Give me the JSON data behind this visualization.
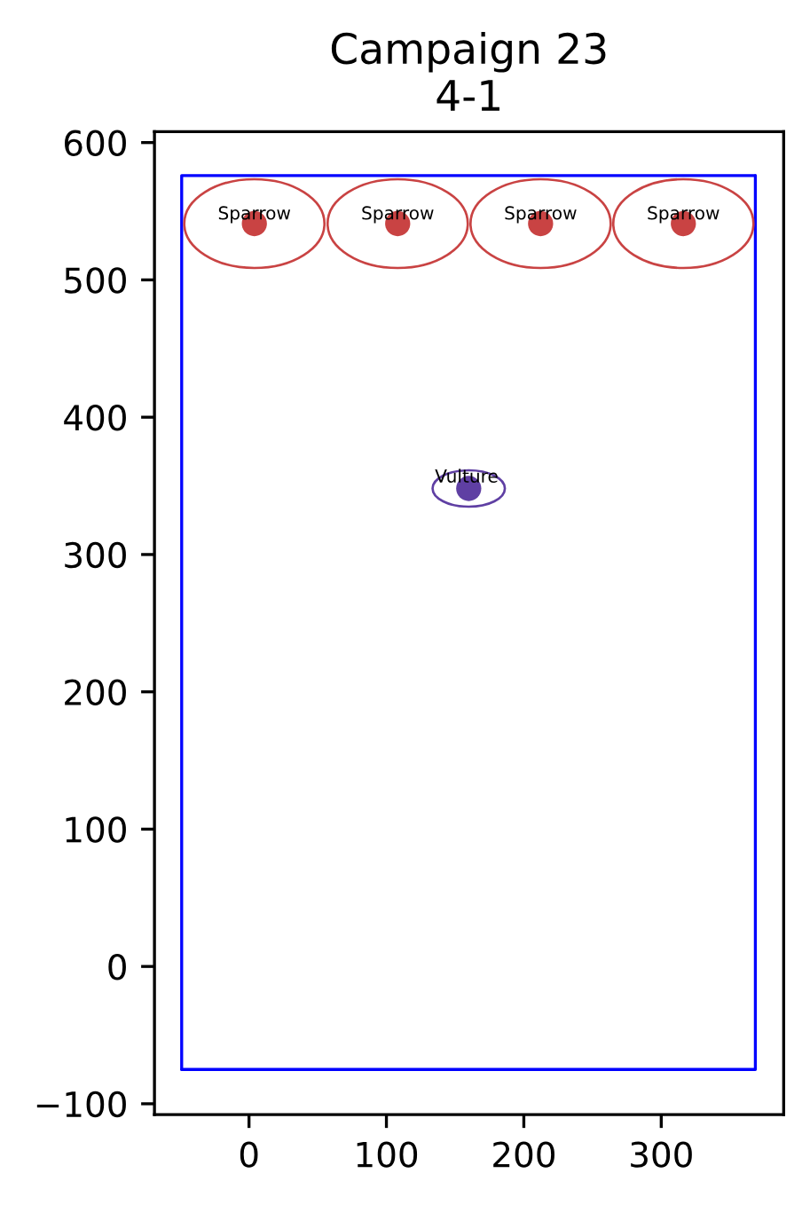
{
  "chart_data": {
    "type": "scatter",
    "title": "Campaign 23\n4-1",
    "marker": "circle",
    "xlim": [
      -68.8,
      389.1
    ],
    "ylim": [
      -107.9,
      608.0
    ],
    "xticks": [
      0,
      100,
      200,
      300
    ],
    "yticks": [
      {
        "value": -100,
        "label": "−100"
      },
      0,
      100,
      200,
      300,
      400,
      500,
      600
    ],
    "series": [
      {
        "type": "line",
        "marker": "none",
        "color": "#0000ff",
        "x": [
          -49,
          -49,
          368.5
        ],
        "values": [
          -75,
          576,
          576
        ]
      },
      {
        "type": "line",
        "marker": "none",
        "color": "#0000ff",
        "x": [
          368.5,
          368.5,
          -49
        ],
        "values": [
          576,
          -75,
          -75
        ]
      },
      {
        "color": "#c94343",
        "x": [
          3.9,
          108.2,
          212.2,
          316.1
        ],
        "values": [
          541,
          541,
          541,
          541
        ]
      },
      {
        "color": "#5f3fa3",
        "x": [
          159.9
        ],
        "values": [
          348.1
        ]
      }
    ],
    "annotations": [
      {
        "text": "Sparrow",
        "x": 3.9,
        "y": 547.6
      },
      {
        "text": "Sparrow",
        "x": 108.2,
        "y": 547.6
      },
      {
        "text": "Sparrow",
        "x": 212.2,
        "y": 547.6
      },
      {
        "text": "Sparrow",
        "x": 316.1,
        "y": 547.6
      },
      {
        "text": "Vulture",
        "x": 158.4,
        "y": 356.1
      }
    ]
  }
}
